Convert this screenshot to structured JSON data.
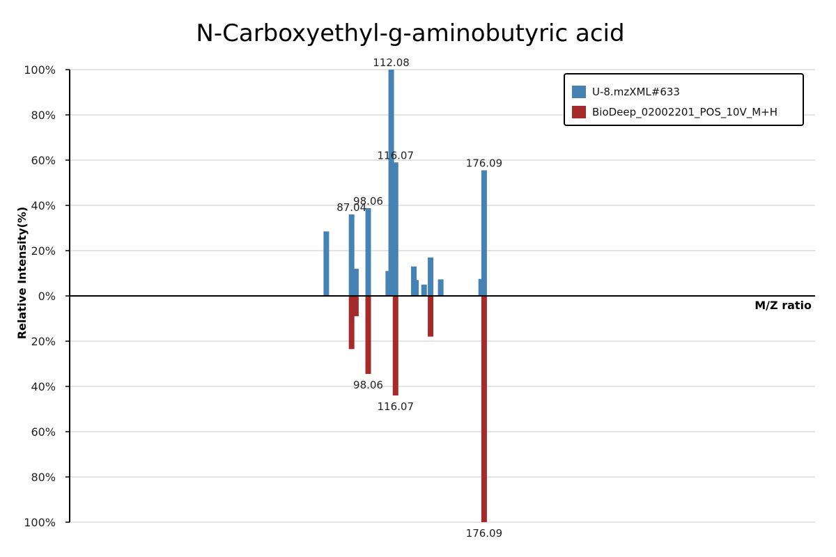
{
  "chart_data": {
    "type": "bar",
    "title": "N-Carboxyethyl-g-aminobutyric acid",
    "xlabel": "M/Z ratio",
    "ylabel": "Relative Intensity(%)",
    "ylim": [
      -100,
      100
    ],
    "xlim": [
      0,
      250
    ],
    "yticks": [
      "100%",
      "80%",
      "60%",
      "40%",
      "20%",
      "0%",
      "20%",
      "40%",
      "60%",
      "80%",
      "100%"
    ],
    "grid": true,
    "legend_position": "top-right",
    "series": [
      {
        "name": "U-8.mzXML#633",
        "color": "#4682b4",
        "direction": "up",
        "peaks": [
          {
            "mz": 86.07,
            "intensity": 28.5
          },
          {
            "mz": 94.55,
            "intensity": 36.0
          },
          {
            "mz": 96.0,
            "intensity": 12.0
          },
          {
            "mz": 100.12,
            "intensity": 38.8
          },
          {
            "mz": 106.86,
            "intensity": 11.0
          },
          {
            "mz": 107.84,
            "intensity": 100.0
          },
          {
            "mz": 109.29,
            "intensity": 59.0
          },
          {
            "mz": 115.42,
            "intensity": 13.0
          },
          {
            "mz": 116.14,
            "intensity": 7.0
          },
          {
            "mz": 118.86,
            "intensity": 5.0
          },
          {
            "mz": 121.04,
            "intensity": 17.0
          },
          {
            "mz": 124.44,
            "intensity": 7.3
          },
          {
            "mz": 138.02,
            "intensity": 7.5
          },
          {
            "mz": 139.0,
            "intensity": 55.5
          }
        ],
        "labels": [
          {
            "mz": 94.55,
            "text": "87.04",
            "intensity": 36.0
          },
          {
            "mz": 100.12,
            "text": "98.06",
            "intensity": 38.8
          },
          {
            "mz": 107.84,
            "text": "112.08",
            "intensity": 100.0
          },
          {
            "mz": 109.29,
            "text": "116.07",
            "intensity": 59.0
          },
          {
            "mz": 139.0,
            "text": "176.09",
            "intensity": 55.5
          }
        ]
      },
      {
        "name": "BioDeep_02002201_POS_10V_M+H",
        "color": "#a52a2a",
        "direction": "down",
        "peaks": [
          {
            "mz": 94.55,
            "intensity": 23.5
          },
          {
            "mz": 96.0,
            "intensity": 9.0
          },
          {
            "mz": 100.12,
            "intensity": 34.5
          },
          {
            "mz": 109.29,
            "intensity": 44.0
          },
          {
            "mz": 121.04,
            "intensity": 18.0
          },
          {
            "mz": 139.0,
            "intensity": 100.0
          }
        ],
        "labels": [
          {
            "mz": 100.12,
            "text": "98.06",
            "intensity": 34.5
          },
          {
            "mz": 109.29,
            "text": "116.07",
            "intensity": 44.0
          },
          {
            "mz": 139.0,
            "text": "176.09",
            "intensity": 100.0
          }
        ]
      }
    ]
  }
}
